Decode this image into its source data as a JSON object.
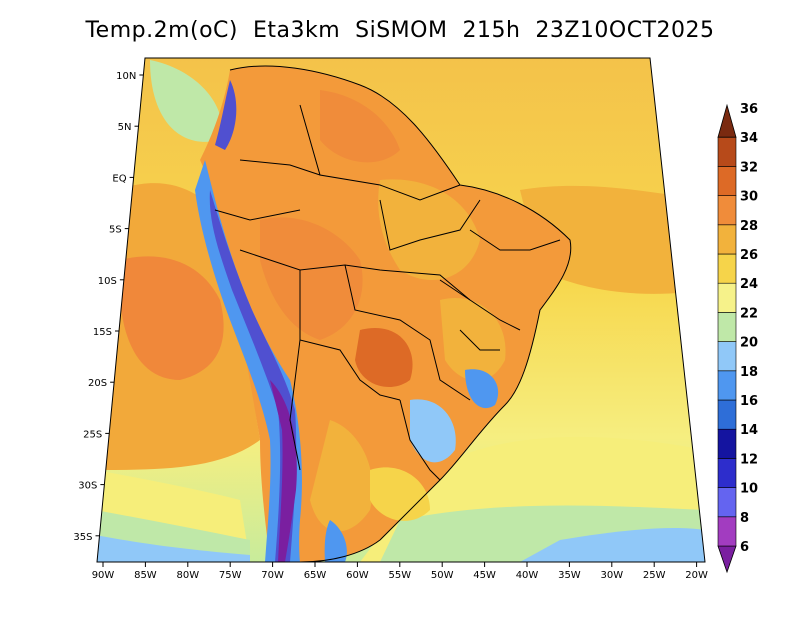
{
  "title": "Temp.2m(oC)  Eta3km  SiSMOM  215h  23Z10OCT2025",
  "map": {
    "lat_labels": [
      "10N",
      "5N",
      "EQ",
      "5S",
      "10S",
      "15S",
      "20S",
      "25S",
      "30S",
      "35S"
    ],
    "lon_labels": [
      "90W",
      "85W",
      "80W",
      "75W",
      "70W",
      "65W",
      "60W",
      "55W",
      "50W",
      "45W",
      "40W",
      "35W",
      "30W",
      "25W",
      "20W"
    ],
    "region": "South America",
    "field_colors": {
      "ocean_warm": "#f2a93a",
      "ocean_hot": "#f0883a",
      "ocean_mild": "#f7d24a",
      "ocean_cool": "#f6ee7a",
      "ocean_cold": "#c9ec98",
      "land_hot": "#f39a3a",
      "andes_cold": "#5050d0"
    }
  },
  "colorbar": {
    "labels": [
      "6",
      "8",
      "10",
      "12",
      "14",
      "16",
      "18",
      "20",
      "22",
      "24",
      "26",
      "28",
      "30",
      "32",
      "34",
      "36"
    ],
    "colors": [
      "#7a1fa0",
      "#a23cc0",
      "#6464f0",
      "#2d2dcc",
      "#1414a0",
      "#2e6ed8",
      "#4f97f0",
      "#90c8f8",
      "#bfe8a8",
      "#f6f28a",
      "#f6d44a",
      "#f2b23c",
      "#f08c3a",
      "#dd6a26",
      "#b74a1a",
      "#7a2a10"
    ]
  }
}
